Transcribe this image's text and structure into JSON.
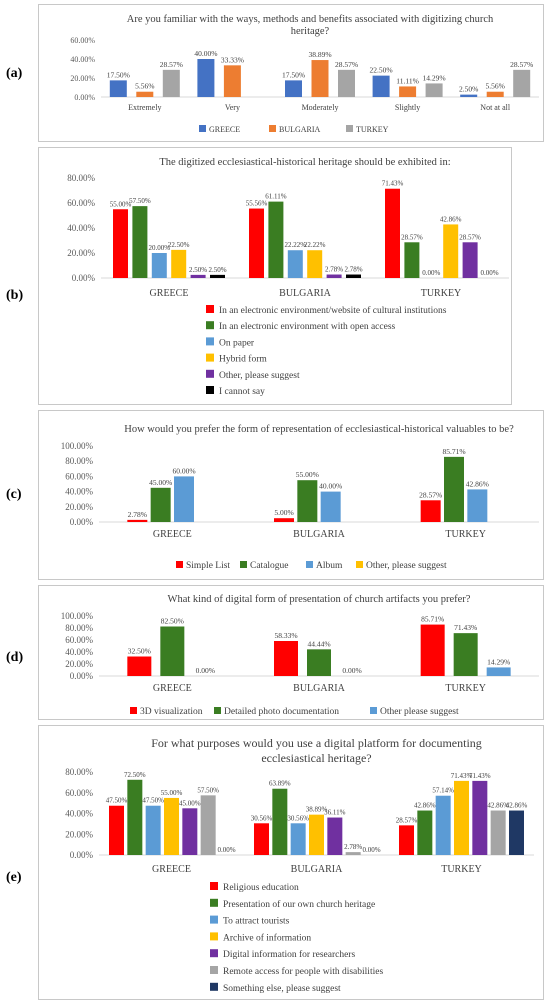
{
  "panel_labels": [
    "(a)",
    "(b)",
    "(c)",
    "(d)",
    "(e)"
  ],
  "colors": {
    "red": "#ff0000",
    "green": "#3a7d22",
    "lightblue": "#5b9bd5",
    "yellow": "#ffc000",
    "purple": "#7030a0",
    "gray": "#a5a5a5",
    "black": "#000000",
    "navy": "#1f3864",
    "blue": "#4472c4",
    "orange": "#ed7d31"
  },
  "chart_data": [
    {
      "type": "bar",
      "title": "Are you familiar with the ways, methods and benefits associated with digitizing church heritage?",
      "title_lines": [
        "Are you familiar with the ways, methods and benefits associated with digitizing church",
        "heritage?"
      ],
      "categories": [
        "Extremely",
        "Very",
        "Moderately",
        "Slightly",
        "Not at all"
      ],
      "series": [
        {
          "name": "GREECE",
          "color": "blue",
          "values": [
            17.5,
            40.0,
            17.5,
            22.5,
            2.5
          ],
          "labels": [
            "17.50%",
            "40.00%",
            "17.50%",
            "22.50%",
            "2.50%"
          ]
        },
        {
          "name": "BULGARIA",
          "color": "orange",
          "values": [
            5.56,
            33.33,
            38.89,
            11.11,
            5.56
          ],
          "labels": [
            "5.56%",
            "33.33%",
            "38.89%",
            "11.11%",
            "5.56%"
          ]
        },
        {
          "name": "TURKEY",
          "color": "gray",
          "values": [
            28.57,
            0,
            28.57,
            14.29,
            28.57
          ],
          "labels": [
            "28.57%",
            "",
            "28.57%",
            "14.29%",
            "28.57%"
          ]
        }
      ],
      "ylim": [
        0,
        60
      ],
      "yticks": [
        "0.00%",
        "20.00%",
        "40.00%",
        "60.00%"
      ],
      "legend": "bottom-row",
      "grid": false
    },
    {
      "type": "bar",
      "title": "The digitized ecclesiastical-historical heritage should be exhibited in:",
      "title_lines": [
        "The digitized ecclesiastical-historical heritage should be exhibited in:"
      ],
      "categories": [
        "GREECE",
        "BULGARIA",
        "TURKEY"
      ],
      "series": [
        {
          "name": "In an electronic environment/website of cultural institutions",
          "color": "red",
          "values": [
            55.0,
            55.56,
            71.43
          ],
          "labels": [
            "55.00%",
            "55.56%",
            "71.43%"
          ]
        },
        {
          "name": "In an electronic environment with open access",
          "color": "green",
          "values": [
            57.5,
            61.11,
            28.57
          ],
          "labels": [
            "57.50%",
            "61.11%",
            "28.57%"
          ]
        },
        {
          "name": "On paper",
          "color": "lightblue",
          "values": [
            20.0,
            22.22,
            0
          ],
          "labels": [
            "20.00%",
            "22.22%",
            "0.00%"
          ]
        },
        {
          "name": "Hybrid form",
          "color": "yellow",
          "values": [
            22.5,
            22.22,
            42.86
          ],
          "labels": [
            "22.50%",
            "22.22%",
            "42.86%"
          ]
        },
        {
          "name": "Other, please suggest",
          "color": "purple",
          "values": [
            2.5,
            2.78,
            28.57
          ],
          "labels": [
            "2.50%",
            "2.78%",
            "28.57%"
          ]
        },
        {
          "name": "I cannot say",
          "color": "black",
          "values": [
            2.5,
            2.78,
            0
          ],
          "labels": [
            "2.50%",
            "2.78%",
            "0.00%"
          ]
        }
      ],
      "ylim": [
        0,
        80
      ],
      "yticks": [
        "0.00%",
        "20.00%",
        "40.00%",
        "60.00%",
        "80.00%"
      ],
      "legend": "bottom-column",
      "grid": false
    },
    {
      "type": "bar",
      "title": "How would you prefer the form of representation of ecclesiastical-historical valuables to be?",
      "title_lines": [
        "How would you prefer the form of representation of ecclesiastical-historical valuables to be?"
      ],
      "categories": [
        "GREECE",
        "BULGARIA",
        "TURKEY"
      ],
      "series": [
        {
          "name": "Simple List",
          "color": "red",
          "values": [
            2.78,
            5.0,
            28.57
          ],
          "labels": [
            "2.78%",
            "5.00%",
            "28.57%"
          ]
        },
        {
          "name": "Catalogue",
          "color": "green",
          "values": [
            45.0,
            55.0,
            85.71
          ],
          "labels": [
            "45.00%",
            "55.00%",
            "85.71%"
          ]
        },
        {
          "name": "Album",
          "color": "lightblue",
          "values": [
            60.0,
            40.0,
            42.86
          ],
          "labels": [
            "60.00%",
            "40.00%",
            "42.86%"
          ]
        },
        {
          "name": "Other, please suggest",
          "color": "yellow",
          "values": [
            0,
            0,
            0
          ],
          "labels": [
            "",
            "",
            ""
          ]
        }
      ],
      "ylim": [
        0,
        100
      ],
      "yticks": [
        "0.00%",
        "20.00%",
        "40.00%",
        "60.00%",
        "80.00%",
        "100.00%"
      ],
      "legend": "bottom-row",
      "grid": false
    },
    {
      "type": "bar",
      "title": "What kind of digital form of presentation of church artifacts you prefer?",
      "title_lines": [
        "What kind of digital form of presentation of church artifacts you prefer?"
      ],
      "categories": [
        "GREECE",
        "BULGARIA",
        "TURKEY"
      ],
      "series": [
        {
          "name": "3D visualization",
          "color": "red",
          "values": [
            32.5,
            58.33,
            85.71
          ],
          "labels": [
            "32.50%",
            "58.33%",
            "85.71%"
          ]
        },
        {
          "name": "Detailed photo documentation",
          "color": "green",
          "values": [
            82.5,
            44.44,
            71.43
          ],
          "labels": [
            "82.50%",
            "44.44%",
            "71.43%"
          ]
        },
        {
          "name": "Other please suggest",
          "color": "lightblue",
          "values": [
            0,
            0,
            14.29
          ],
          "labels": [
            "0.00%",
            "0.00%",
            "14.29%"
          ]
        }
      ],
      "ylim": [
        0,
        100
      ],
      "yticks": [
        "0.00%",
        "20.00%",
        "40.00%",
        "60.00%",
        "80.00%",
        "100.00%"
      ],
      "legend": "bottom-row",
      "grid": false
    },
    {
      "type": "bar",
      "title": "For what purposes would you use a digital platform for documenting ecclesiastical heritage?",
      "title_lines": [
        "For what purposes would you use a digital platform for documenting",
        "ecclesiastical heritage?"
      ],
      "categories": [
        "GREECE",
        "BULGARIA",
        "TURKEY"
      ],
      "series": [
        {
          "name": "Religious education",
          "color": "red",
          "values": [
            47.5,
            30.56,
            28.57
          ],
          "labels": [
            "47.50%",
            "30.56%",
            "28.57%"
          ]
        },
        {
          "name": "Presentation of our own church heritage",
          "color": "green",
          "values": [
            72.5,
            63.89,
            42.86
          ],
          "labels": [
            "72.50%",
            "63.89%",
            "42.86%"
          ]
        },
        {
          "name": "To attract tourists",
          "color": "lightblue",
          "values": [
            47.5,
            30.56,
            57.14
          ],
          "labels": [
            "47.50%",
            "30.56%",
            "57.14%"
          ]
        },
        {
          "name": "Archive of information",
          "color": "yellow",
          "values": [
            55.0,
            38.89,
            71.43
          ],
          "labels": [
            "55.00%",
            "38.89%",
            "71.43%"
          ]
        },
        {
          "name": "Digital information for researchers",
          "color": "purple",
          "values": [
            45.0,
            36.11,
            71.43
          ],
          "labels": [
            "45.00%",
            "36.11%",
            "71.43%"
          ]
        },
        {
          "name": "Remote access for people with disabilities",
          "color": "gray",
          "values": [
            57.5,
            2.78,
            42.86
          ],
          "labels": [
            "57.50%",
            "2.78%",
            "42.86%"
          ]
        },
        {
          "name": "Something else, please suggest",
          "color": "navy",
          "values": [
            0,
            0,
            42.86
          ],
          "labels": [
            "0.00%",
            "0.00%",
            "42.86%"
          ]
        }
      ],
      "ylim": [
        0,
        80
      ],
      "yticks": [
        "0.00%",
        "20.00%",
        "40.00%",
        "60.00%",
        "80.00%"
      ],
      "legend": "bottom-column",
      "grid": false
    }
  ]
}
